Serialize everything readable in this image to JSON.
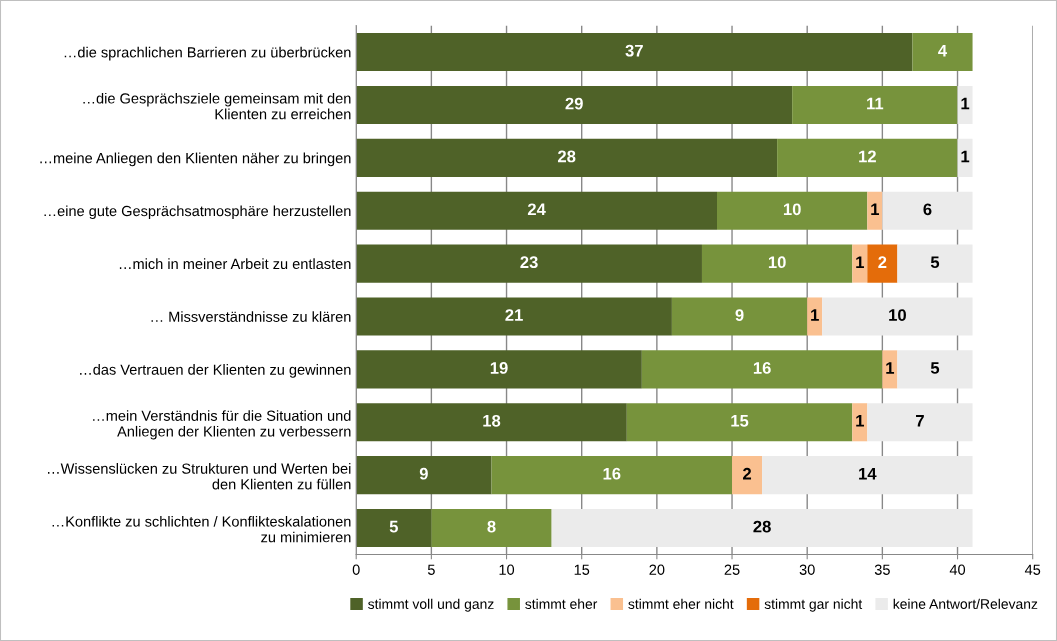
{
  "chart_data": {
    "type": "bar",
    "orientation": "horizontal",
    "stacked": true,
    "data_labels": true,
    "grid": "x",
    "legend": "bottom",
    "categories": [
      "…die sprachlichen Barrieren zu überbrücken",
      "…die Gesprächsziele gemeinsam mit den\nKlienten zu erreichen",
      "…meine Anliegen den Klienten näher zu bringen",
      "…eine gute Gesprächsatmosphäre herzustellen",
      "…mich in meiner Arbeit zu entlasten",
      "… Missverständnisse zu klären",
      "…das Vertrauen der Klienten zu gewinnen",
      "…mein Verständnis für die Situation und\nAnliegen der Klienten zu verbessern",
      "…Wissenslücken zu Strukturen und Werten bei\nden Klienten zu füllen",
      "…Konflikte zu schlichten / Konflikteskalationen\nzu minimieren"
    ],
    "series": [
      {
        "name": "stimmt voll und ganz",
        "color": "#4f6228",
        "values": [
          37,
          29,
          28,
          24,
          23,
          21,
          19,
          18,
          9,
          5
        ]
      },
      {
        "name": "stimmt eher",
        "color": "#77933c",
        "values": [
          4,
          11,
          12,
          10,
          10,
          9,
          16,
          15,
          16,
          8
        ]
      },
      {
        "name": "stimmt eher nicht",
        "color": "#fac090",
        "values": [
          null,
          null,
          null,
          1,
          1,
          1,
          1,
          1,
          2,
          null
        ]
      },
      {
        "name": "stimmt gar nicht",
        "color": "#e46c0a",
        "values": [
          null,
          null,
          null,
          null,
          2,
          null,
          null,
          null,
          null,
          null
        ]
      },
      {
        "name": "keine Antwort/Relevanz",
        "color": "#ebebeb",
        "values": [
          null,
          1,
          1,
          6,
          5,
          10,
          5,
          7,
          14,
          28
        ]
      }
    ],
    "xlim": [
      0,
      45
    ],
    "xticks": [
      0,
      5,
      10,
      15,
      20,
      25,
      30,
      35,
      40,
      45
    ]
  }
}
